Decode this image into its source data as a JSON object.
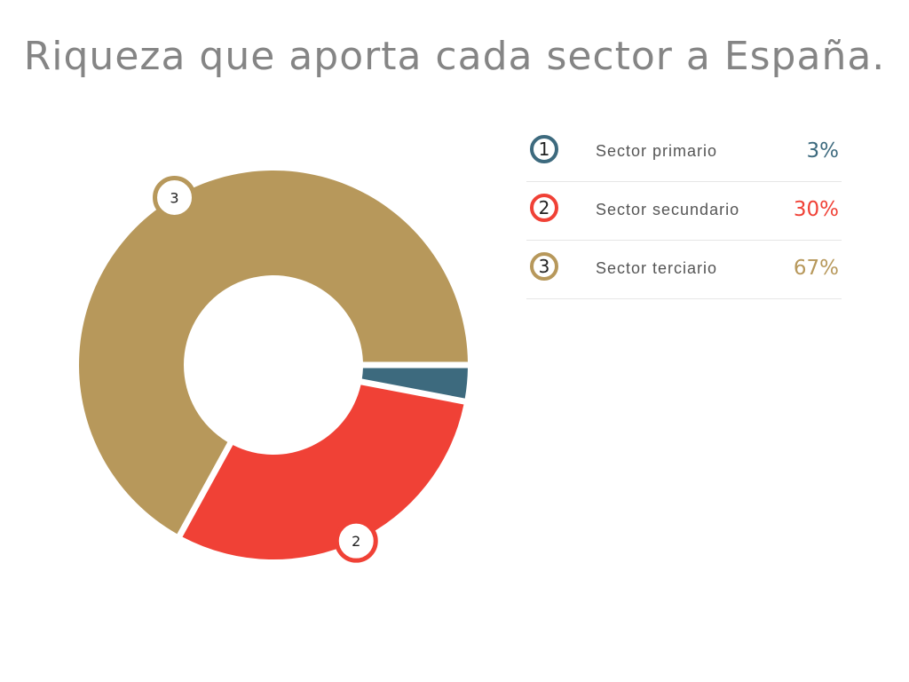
{
  "title": "Riqueza que aporta cada sector a España.",
  "colors": {
    "primario": "#3d6a7e",
    "secundario": "#f04136",
    "terciario": "#b7985b"
  },
  "chart_data": {
    "type": "pie",
    "title": "Riqueza que aporta cada sector a España.",
    "categories": [
      "Sector primario",
      "Sector secundario",
      "Sector terciario"
    ],
    "values": [
      3,
      30,
      67
    ],
    "unit": "%",
    "donut": true,
    "legend": "right",
    "slices": [
      {
        "index": "1",
        "label": "Sector primario",
        "value": 3,
        "value_label": "3%",
        "color": "#3d6a7e",
        "marker": ""
      },
      {
        "index": "2",
        "label": "Sector secundario",
        "value": 30,
        "value_label": "30%",
        "color": "#f04136",
        "marker": "2"
      },
      {
        "index": "3",
        "label": "Sector terciario",
        "value": 67,
        "value_label": "67%",
        "color": "#b7985b",
        "marker": "3"
      }
    ]
  }
}
